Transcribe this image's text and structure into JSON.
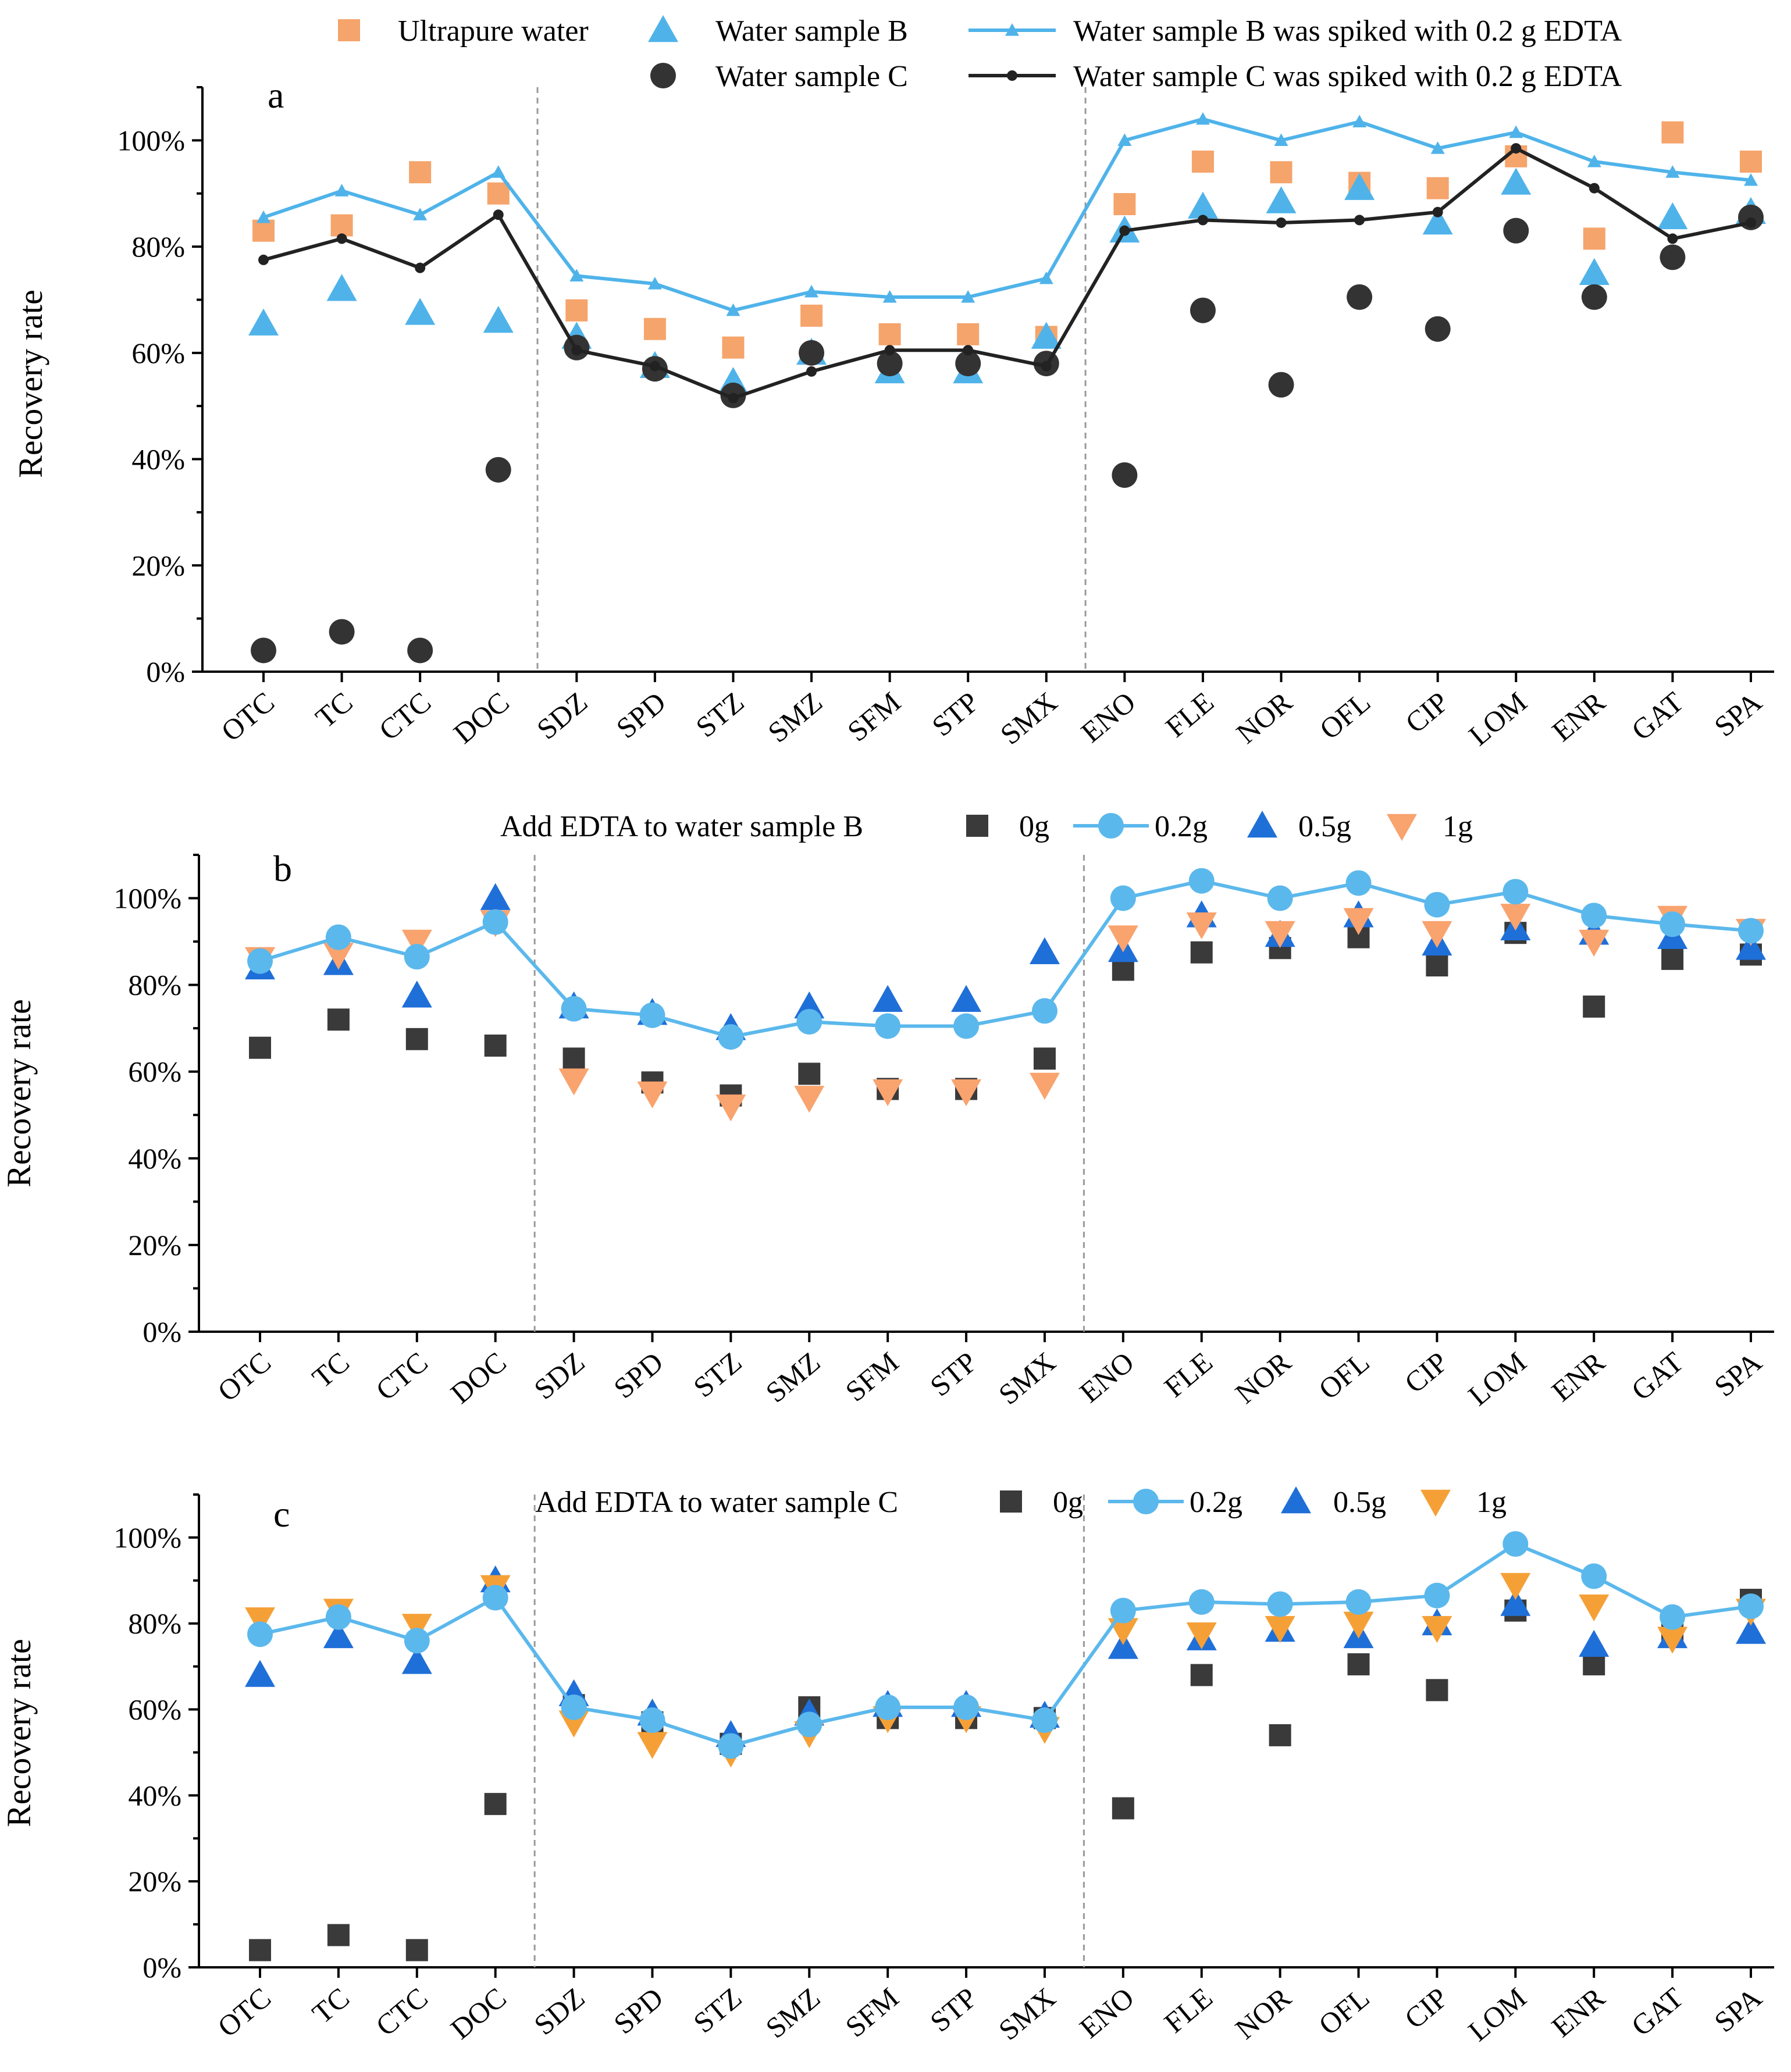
{
  "chart_data": [
    {
      "panel": "a",
      "type": "line",
      "ylabel": "Recovery rate",
      "xlabel": "",
      "ylim": [
        0,
        110
      ],
      "yticks": [
        0,
        20,
        40,
        60,
        80,
        100
      ],
      "ytick_labels": [
        "0%",
        "20%",
        "40%",
        "60%",
        "80%",
        "100%"
      ],
      "categories": [
        "OTC",
        "TC",
        "CTC",
        "DOC",
        "SDZ",
        "SPD",
        "STZ",
        "SMZ",
        "SFM",
        "STP",
        "SMX",
        "ENO",
        "FLE",
        "NOR",
        "OFL",
        "CIP",
        "LOM",
        "ENR",
        "GAT",
        "SPA"
      ],
      "group_dividers_after": [
        "DOC",
        "SMX"
      ],
      "legend_title": "",
      "series": [
        {
          "name": "Ultrapure water",
          "marker": "square",
          "line": false,
          "color": "#F5A46B",
          "values": [
            83,
            84,
            94,
            90,
            68,
            64.5,
            61,
            67,
            63.5,
            63.5,
            63,
            88,
            96,
            94,
            92,
            91,
            97,
            81.5,
            101.5,
            96
          ]
        },
        {
          "name": "Water sample B",
          "marker": "triangle-up",
          "line": false,
          "color": "#4FB3EA",
          "values": [
            65.5,
            72,
            67.5,
            66,
            63,
            57.5,
            54.5,
            60,
            56.5,
            56.5,
            63,
            83,
            87.5,
            88.5,
            91,
            84.5,
            92,
            75,
            85.5,
            86.5
          ]
        },
        {
          "name": "Water sample B was spiked with 0.2 g EDTA",
          "marker": "triangle-up-small",
          "line": true,
          "color": "#4FB3EA",
          "values": [
            85.5,
            90.5,
            86,
            94,
            74.5,
            73,
            68,
            71.5,
            70.5,
            70.5,
            74,
            100,
            104,
            100,
            103.5,
            98.5,
            101.5,
            96,
            94,
            92.5
          ]
        },
        {
          "name": "Water sample C",
          "marker": "circle",
          "line": false,
          "color": "#333333",
          "values": [
            4,
            7.5,
            4,
            38,
            61,
            57,
            52,
            60,
            58,
            58,
            58,
            37,
            68,
            54,
            70.5,
            64.5,
            83,
            70.5,
            78,
            85.5
          ]
        },
        {
          "name": "Water sample C was spiked with 0.2 g EDTA",
          "marker": "circle-small",
          "line": true,
          "color": "#222222",
          "values": [
            77.5,
            81.5,
            76,
            86,
            60.5,
            57.5,
            51.5,
            56.5,
            60.5,
            60.5,
            57.5,
            83,
            85,
            84.5,
            85,
            86.5,
            98.5,
            91,
            81.5,
            84.5
          ]
        }
      ]
    },
    {
      "panel": "b",
      "type": "line",
      "ylabel": "Recovery rate",
      "xlabel": "",
      "ylim": [
        0,
        110
      ],
      "yticks": [
        0,
        20,
        40,
        60,
        80,
        100
      ],
      "ytick_labels": [
        "0%",
        "20%",
        "40%",
        "60%",
        "80%",
        "100%"
      ],
      "categories": [
        "OTC",
        "TC",
        "CTC",
        "DOC",
        "SDZ",
        "SPD",
        "STZ",
        "SMZ",
        "SFM",
        "STP",
        "SMX",
        "ENO",
        "FLE",
        "NOR",
        "OFL",
        "CIP",
        "LOM",
        "ENR",
        "GAT",
        "SPA"
      ],
      "group_dividers_after": [
        "DOC",
        "SMX"
      ],
      "legend_title": "Add EDTA to water sample B",
      "series": [
        {
          "name": "0g",
          "marker": "square",
          "line": false,
          "color": "#3A3A3A",
          "values": [
            65.5,
            72,
            67.5,
            66,
            63,
            57.5,
            54.5,
            59.5,
            56,
            56,
            63,
            83.5,
            87.5,
            88.5,
            91,
            84.5,
            92,
            75,
            86,
            87
          ]
        },
        {
          "name": "0.2g",
          "marker": "circle",
          "line": true,
          "color": "#5BB8EC",
          "values": [
            85.5,
            91,
            86.5,
            94.5,
            74.5,
            73,
            68,
            71.5,
            70.5,
            70.5,
            74,
            100,
            104,
            100,
            103.5,
            98.5,
            101.5,
            96,
            94,
            92.5
          ]
        },
        {
          "name": "0.5g",
          "marker": "triangle-up",
          "line": false,
          "color": "#1F6FD8",
          "values": [
            84,
            85,
            77.5,
            100,
            75,
            73.5,
            70,
            75,
            76.5,
            76.5,
            87.5,
            88,
            96,
            91.5,
            96,
            89.5,
            93,
            92,
            91,
            88.5
          ]
        },
        {
          "name": "1g",
          "marker": "triangle-down",
          "line": false,
          "color": "#F9A36E",
          "values": [
            86,
            87,
            90,
            94.5,
            58,
            55,
            52,
            54,
            55.5,
            55.5,
            57,
            91,
            94,
            92,
            95,
            92,
            96,
            90,
            95.5,
            92.5
          ]
        }
      ]
    },
    {
      "panel": "c",
      "type": "line",
      "ylabel": "Recovery rate",
      "xlabel": "",
      "ylim": [
        0,
        110
      ],
      "yticks": [
        0,
        20,
        40,
        60,
        80,
        100
      ],
      "ytick_labels": [
        "0%",
        "20%",
        "40%",
        "60%",
        "80%",
        "100%"
      ],
      "categories": [
        "OTC",
        "TC",
        "CTC",
        "DOC",
        "SDZ",
        "SPD",
        "STZ",
        "SMZ",
        "SFM",
        "STP",
        "SMX",
        "ENO",
        "FLE",
        "NOR",
        "OFL",
        "CIP",
        "LOM",
        "ENR",
        "GAT",
        "SPA"
      ],
      "group_dividers_after": [
        "DOC",
        "SMX"
      ],
      "legend_title": "Add EDTA to water sample C",
      "series": [
        {
          "name": "0g",
          "marker": "square",
          "line": false,
          "color": "#3A3A3A",
          "values": [
            4,
            7.5,
            4,
            38,
            61,
            57,
            52,
            60.5,
            58,
            58,
            58,
            37,
            68,
            54,
            70.5,
            64.5,
            83,
            70.5,
            78,
            85.5
          ]
        },
        {
          "name": "0.2g",
          "marker": "circle",
          "line": true,
          "color": "#5BB8EC",
          "values": [
            77.5,
            81.5,
            76,
            86,
            60.5,
            57.5,
            51.5,
            56.5,
            60.5,
            60.5,
            57.5,
            83,
            85,
            84.5,
            85,
            86.5,
            98.5,
            91,
            81.5,
            84
          ]
        },
        {
          "name": "0.5g",
          "marker": "triangle-up",
          "line": false,
          "color": "#1F6FD8",
          "values": [
            68,
            77,
            71,
            90,
            63.5,
            59,
            54,
            59,
            61,
            61,
            58.5,
            74.5,
            76.5,
            78.5,
            77,
            80,
            84.5,
            75,
            77,
            78
          ]
        },
        {
          "name": "1g",
          "marker": "triangle-down",
          "line": false,
          "color": "#F5A037",
          "values": [
            81,
            83,
            79.5,
            88.5,
            57,
            52,
            50,
            54.5,
            58,
            58,
            55.5,
            78.5,
            77.5,
            79,
            80,
            79,
            89,
            84,
            76.5,
            83
          ]
        }
      ]
    }
  ]
}
